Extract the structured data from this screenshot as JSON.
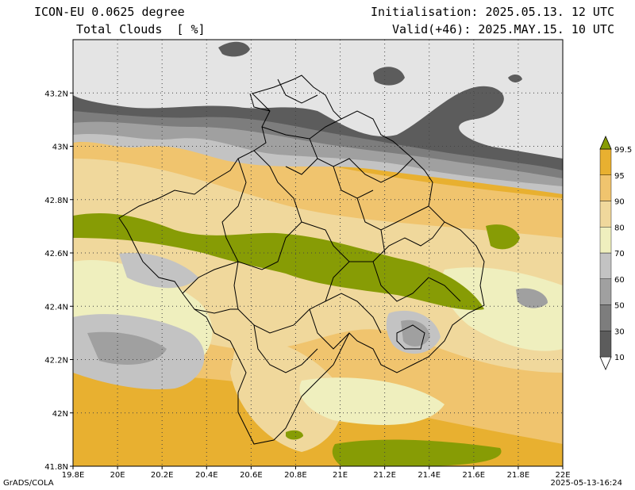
{
  "header": {
    "model": "ICON-EU 0.0625 degree",
    "variable": "Total Clouds  [ %]",
    "init": "Initialisation: 2025.05.13. 12 UTC",
    "valid": "Valid(+46): 2025.MAY.15. 10 UTC"
  },
  "footer": {
    "credit": "GrADS/COLA",
    "timestamp": "2025-05-13-16:24"
  },
  "map": {
    "lon_range": [
      19.8,
      22.0
    ],
    "lat_range": [
      41.8,
      43.4
    ],
    "lon_ticks": [
      "19.8E",
      "20E",
      "20.2E",
      "20.4E",
      "20.6E",
      "20.8E",
      "21E",
      "21.2E",
      "21.4E",
      "21.6E",
      "21.8E",
      "22E"
    ],
    "lat_ticks": [
      "41.8N",
      "42N",
      "42.2N",
      "42.4N",
      "42.6N",
      "42.8N",
      "43N",
      "43.2N"
    ],
    "grid": "dotted"
  },
  "legend": {
    "labels": [
      "10",
      "30",
      "50",
      "60",
      "70",
      "80",
      "90",
      "95",
      "99.5"
    ],
    "colors": [
      "#ffffff",
      "#5c5c5c",
      "#7d7d7d",
      "#a0a0a0",
      "#c3c3c3",
      "#efefbe",
      "#f0d89c",
      "#f0c46e",
      "#e8b030",
      "#879c05"
    ]
  },
  "colors": {
    "clear": "#e4e4e4",
    "very_dark": "#5c5c5c",
    "dark": "#7d7d7d",
    "mid": "#a0a0a0",
    "light": "#c3c3c3",
    "cream": "#efefbe",
    "tan": "#f0d89c",
    "orange": "#f0c46e",
    "deep_orange": "#e8b030",
    "olive": "#879c05"
  }
}
